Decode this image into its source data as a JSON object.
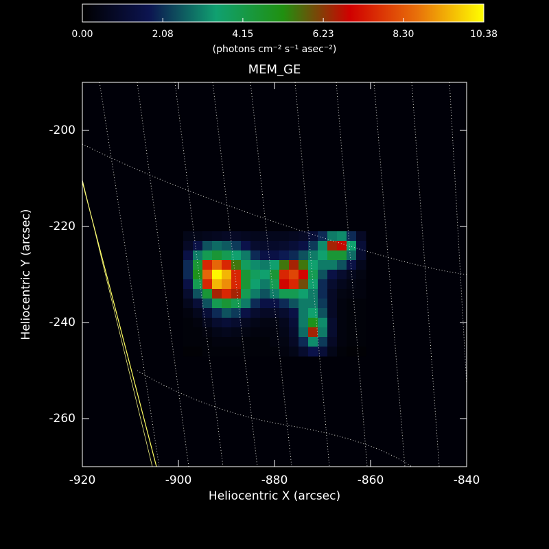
{
  "chart_data": {
    "type": "heatmap",
    "title": "MEM_GE",
    "x_label": "Heliocentric X (arcsec)",
    "y_label": "Heliocentric Y (arcsec)",
    "colorbar_label": "(photons cm⁻² s⁻¹ asec⁻²)",
    "xlim": [
      -920,
      -840
    ],
    "ylim": [
      -270,
      -190
    ],
    "xticks": [
      -920,
      -900,
      -880,
      -860,
      -840
    ],
    "yticks": [
      -200,
      -220,
      -240,
      -260
    ],
    "clim": [
      0,
      10.38
    ],
    "cticks": [
      {
        "value": 0,
        "label": "0.00"
      },
      {
        "value": 2.08,
        "label": "2.08"
      },
      {
        "value": 4.15,
        "label": "4.15"
      },
      {
        "value": 6.23,
        "label": "6.23"
      },
      {
        "value": 8.3,
        "label": "8.30"
      },
      {
        "value": 10.38,
        "label": "10.38"
      }
    ],
    "colormap": [
      "#000000",
      "#0c1450",
      "#10a070",
      "#209010",
      "#d00000",
      "#e8700a",
      "#ffff00"
    ],
    "x": [
      -898,
      -896,
      -894,
      -892,
      -890,
      -888,
      -886,
      -884,
      -882,
      -880,
      -878,
      -876,
      -874,
      -872,
      -870,
      -868,
      -866,
      -864,
      -862
    ],
    "y": [
      -222,
      -224,
      -226,
      -228,
      -230,
      -232,
      -234,
      -236,
      -238,
      -240,
      -242,
      -244,
      -246
    ],
    "values": [
      [
        0.5,
        0.5,
        0.6,
        0.7,
        0.8,
        0.8,
        0.7,
        0.6,
        0.6,
        0.6,
        0.6,
        0.7,
        0.8,
        1.2,
        2.0,
        3.0,
        3.2,
        2.0,
        0.8
      ],
      [
        0.8,
        1.5,
        2.5,
        2.8,
        2.6,
        2.2,
        1.6,
        1.0,
        0.9,
        0.9,
        1.0,
        1.2,
        1.5,
        2.2,
        3.2,
        6.5,
        6.8,
        3.5,
        1.2
      ],
      [
        1.5,
        3.0,
        4.0,
        4.5,
        4.0,
        3.5,
        3.0,
        2.0,
        1.5,
        1.5,
        1.8,
        2.0,
        2.5,
        3.0,
        3.5,
        4.5,
        4.5,
        2.8,
        1.0
      ],
      [
        2.0,
        4.5,
        7.5,
        8.5,
        7.5,
        5.5,
        3.8,
        3.2,
        3.0,
        3.5,
        5.5,
        6.5,
        5.5,
        3.5,
        3.0,
        3.0,
        2.5,
        1.5,
        0.6
      ],
      [
        2.0,
        5.0,
        8.5,
        10.3,
        9.5,
        7.5,
        4.5,
        3.8,
        3.5,
        4.5,
        7.5,
        8.0,
        7.0,
        4.0,
        2.5,
        1.5,
        1.0,
        0.6,
        0.4
      ],
      [
        1.5,
        4.0,
        7.5,
        9.5,
        9.0,
        7.5,
        4.5,
        3.5,
        3.0,
        4.0,
        7.0,
        7.5,
        6.0,
        3.5,
        2.0,
        1.0,
        0.6,
        0.4,
        0.3
      ],
      [
        1.0,
        2.5,
        4.5,
        6.5,
        7.5,
        6.5,
        4.0,
        3.0,
        2.5,
        3.0,
        4.0,
        4.0,
        3.5,
        3.0,
        2.0,
        0.8,
        0.4,
        0.3,
        0.3
      ],
      [
        0.6,
        1.2,
        2.5,
        4.0,
        4.5,
        4.0,
        3.0,
        2.0,
        1.5,
        1.5,
        2.0,
        2.5,
        3.0,
        3.0,
        2.2,
        0.8,
        0.3,
        0.2,
        0.2
      ],
      [
        0.3,
        0.6,
        1.2,
        2.0,
        2.5,
        2.2,
        1.5,
        1.0,
        0.8,
        0.8,
        1.0,
        1.5,
        3.0,
        3.5,
        2.5,
        0.8,
        0.3,
        0.2,
        0.2
      ],
      [
        0.2,
        0.3,
        0.6,
        1.0,
        1.2,
        1.0,
        0.7,
        0.5,
        0.4,
        0.4,
        0.6,
        1.2,
        3.0,
        5.0,
        3.2,
        1.0,
        0.3,
        0.2,
        0.2
      ],
      [
        0.2,
        0.2,
        0.3,
        0.5,
        0.6,
        0.5,
        0.4,
        0.3,
        0.3,
        0.3,
        0.5,
        1.0,
        2.8,
        6.5,
        3.0,
        1.0,
        0.3,
        0.2,
        0.2
      ],
      [
        0.2,
        0.2,
        0.2,
        0.3,
        0.3,
        0.3,
        0.2,
        0.2,
        0.2,
        0.3,
        0.4,
        0.8,
        2.0,
        3.2,
        2.2,
        0.8,
        0.3,
        0.2,
        0.2
      ],
      [
        0.1,
        0.1,
        0.2,
        0.2,
        0.2,
        0.2,
        0.2,
        0.2,
        0.2,
        0.2,
        0.3,
        0.5,
        1.0,
        1.6,
        1.2,
        0.5,
        0.2,
        0.1,
        0.1
      ]
    ]
  }
}
